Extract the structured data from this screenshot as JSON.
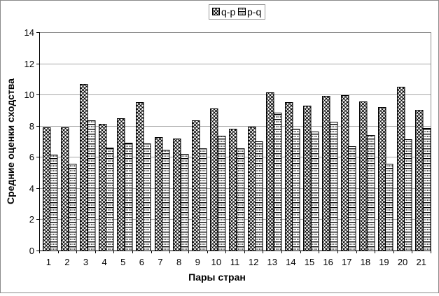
{
  "chart_data": {
    "type": "bar",
    "title": "",
    "xlabel": "Пары стран",
    "ylabel": "Средние оценки сходства",
    "categories": [
      "1",
      "2",
      "3",
      "4",
      "5",
      "6",
      "7",
      "8",
      "9",
      "10",
      "11",
      "12",
      "13",
      "14",
      "15",
      "16",
      "17",
      "18",
      "19",
      "20",
      "21"
    ],
    "series": [
      {
        "name": "q-p",
        "pattern": "diagonal-crosshatch",
        "values": [
          7.9,
          7.9,
          10.7,
          8.1,
          8.5,
          9.5,
          7.25,
          7.2,
          8.35,
          9.1,
          7.8,
          7.95,
          10.15,
          9.5,
          9.3,
          9.9,
          9.95,
          9.55,
          9.2,
          10.5,
          9.0
        ]
      },
      {
        "name": "p-q",
        "pattern": "horizontal-dash",
        "values": [
          6.15,
          5.55,
          8.35,
          6.6,
          6.9,
          6.85,
          6.45,
          6.2,
          6.55,
          7.35,
          6.55,
          7.0,
          8.85,
          7.8,
          7.65,
          8.25,
          6.7,
          7.4,
          5.55,
          7.15,
          7.85
        ]
      }
    ],
    "ylim": [
      0,
      14
    ],
    "yticks": [
      0,
      2,
      4,
      6,
      8,
      10,
      12,
      14
    ],
    "grid": "horizontal",
    "legend_position": "top-center",
    "colors": {
      "background": "#ffffff",
      "bar_fill_bg": "#ffffff",
      "bar_outline": "#000000",
      "pattern_ink": "#000000",
      "gridline": "#a6a6a6",
      "plot_border": "#8c8c8c",
      "axis": "#000000"
    }
  }
}
